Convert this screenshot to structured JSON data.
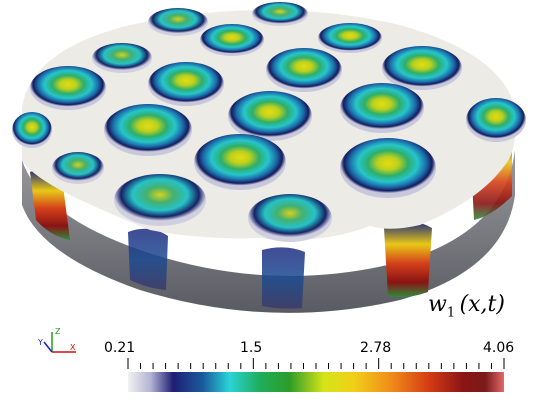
{
  "variable_label": {
    "symbol": "w",
    "subscript": "1",
    "args": "(x,t)"
  },
  "colorbar": {
    "ticks": [
      "0.21",
      "1.5",
      "2.78",
      "4.06"
    ],
    "min": 0.21,
    "max": 4.06,
    "colors": [
      "#f2f2f2",
      "#d8d8e8",
      "#9a9ac8",
      "#2a2a8c",
      "#14145a",
      "#1a4a8e",
      "#1e8fbf",
      "#2ad4d8",
      "#24c8a8",
      "#1fae5a",
      "#2e9c28",
      "#8cc81e",
      "#e8e818",
      "#f0c818",
      "#f08c18",
      "#e45414",
      "#c82814",
      "#961414",
      "#7a1a1a",
      "#c84646",
      "#e87878"
    ]
  },
  "orientation_axes": {
    "x": "X",
    "y": "Y",
    "z": "Z"
  },
  "blob_colors": {
    "ring": "#141a5c",
    "mid": "#22b8c4",
    "green": "#2ea86a",
    "peak": "#d8d418",
    "surface": "#ecebe6",
    "side": "#7c7c80"
  }
}
